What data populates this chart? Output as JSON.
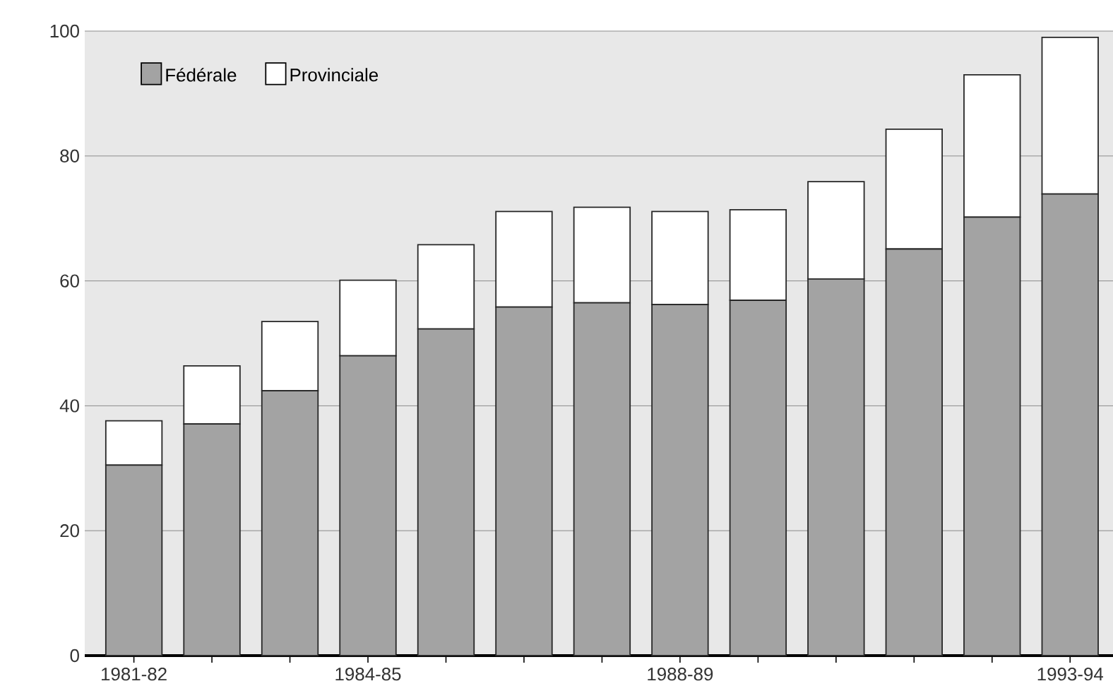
{
  "chart_data": {
    "type": "bar",
    "stacked": true,
    "categories": [
      "1981-82",
      null,
      null,
      "1984-85",
      null,
      null,
      null,
      "1988-89",
      null,
      null,
      null,
      null,
      "1993-94"
    ],
    "series": [
      {
        "name": "Fédérale",
        "color": "#a3a3a3",
        "values": [
          30.5,
          37.1,
          42.4,
          48.0,
          52.3,
          55.8,
          56.5,
          56.2,
          56.9,
          60.3,
          65.1,
          70.2,
          73.9
        ]
      },
      {
        "name": "Provinciale",
        "color": "#ffffff",
        "values": [
          7.1,
          9.3,
          11.1,
          12.1,
          13.5,
          15.3,
          15.3,
          14.9,
          14.5,
          15.6,
          19.2,
          22.8,
          25.1
        ]
      }
    ],
    "ylim": [
      0,
      100
    ],
    "yticks": [
      0,
      20,
      40,
      60,
      80,
      100
    ],
    "grid": "y",
    "legend": "top left"
  }
}
